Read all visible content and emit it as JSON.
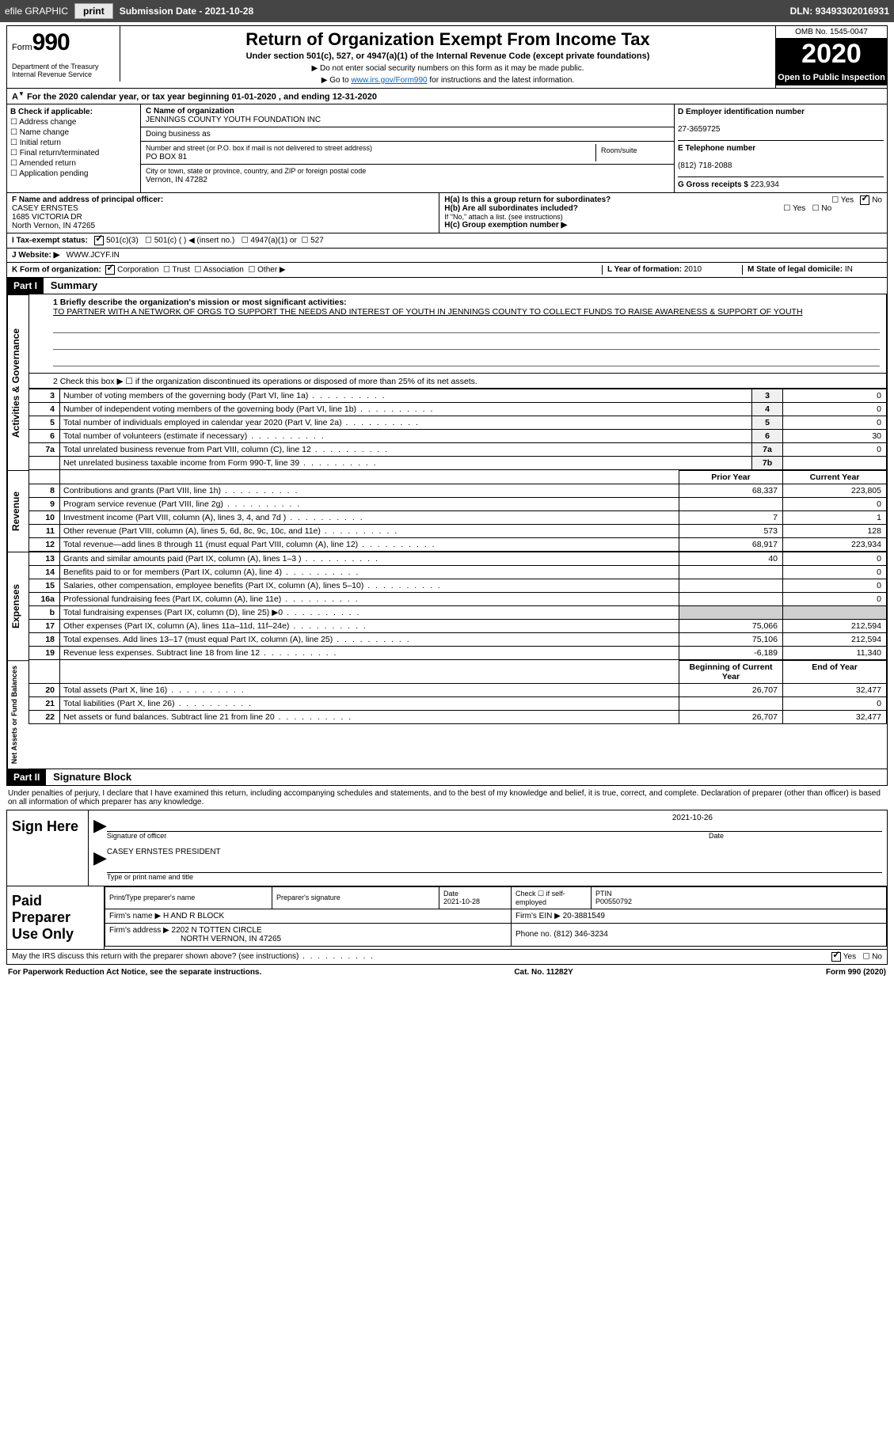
{
  "topbar": {
    "efile": "efile GRAPHIC",
    "print": "print",
    "subdate_label": "Submission Date - ",
    "subdate": "2021-10-28",
    "dln_label": "DLN: ",
    "dln": "93493302016931"
  },
  "header": {
    "form_word": "Form",
    "form_num": "990",
    "dept": "Department of the Treasury\nInternal Revenue Service",
    "title": "Return of Organization Exempt From Income Tax",
    "sub": "Under section 501(c), 527, or 4947(a)(1) of the Internal Revenue Code (except private foundations)",
    "note1": "▶ Do not enter social security numbers on this form as it may be made public.",
    "note2_pre": "▶ Go to ",
    "note2_link": "www.irs.gov/Form990",
    "note2_post": " for instructions and the latest information.",
    "omb": "OMB No. 1545-0047",
    "year": "2020",
    "openpub": "Open to Public Inspection"
  },
  "period": "For the 2020 calendar year, or tax year beginning 01-01-2020   , and ending 12-31-2020",
  "boxB": {
    "title": "B Check if applicable:",
    "opts": [
      "Address change",
      "Name change",
      "Initial return",
      "Final return/terminated",
      "Amended return",
      "Application pending"
    ]
  },
  "boxC": {
    "label": "C Name of organization",
    "name": "JENNINGS COUNTY YOUTH FOUNDATION INC",
    "dba_label": "Doing business as",
    "addr_label": "Number and street (or P.O. box if mail is not delivered to street address)",
    "room_label": "Room/suite",
    "addr": "PO BOX 81",
    "city_label": "City or town, state or province, country, and ZIP or foreign postal code",
    "city": "Vernon, IN  47282"
  },
  "boxD": {
    "label": "D Employer identification number",
    "val": "27-3659725"
  },
  "boxE": {
    "label": "E Telephone number",
    "val": "(812) 718-2088"
  },
  "boxG": {
    "label": "G Gross receipts $ ",
    "val": "223,934"
  },
  "boxF": {
    "label": "F Name and address of principal officer:",
    "name": "CASEY ERNSTES",
    "addr1": "1685 VICTORIA DR",
    "addr2": "North Vernon, IN  47265"
  },
  "boxH": {
    "a_label": "H(a)  Is this a group return for subordinates?",
    "b_label": "H(b)  Are all subordinates included?",
    "b_note": "If \"No,\" attach a list. (see instructions)",
    "c_label": "H(c)  Group exemption number ▶",
    "yes": "Yes",
    "no": "No"
  },
  "rowI": {
    "label": "I   Tax-exempt status:",
    "o1": "501(c)(3)",
    "o2": "501(c) (  ) ◀ (insert no.)",
    "o3": "4947(a)(1) or",
    "o4": "527"
  },
  "rowJ": {
    "label": "J   Website: ▶",
    "val": "WWW.JCYF.IN"
  },
  "rowK": {
    "label": "K Form of organization:",
    "o1": "Corporation",
    "o2": "Trust",
    "o3": "Association",
    "o4": "Other ▶"
  },
  "rowL": {
    "label": "L Year of formation: ",
    "val": "2010"
  },
  "rowM": {
    "label": "M State of legal domicile: ",
    "val": "IN"
  },
  "part1": {
    "tag": "Part I",
    "title": "Summary",
    "line1_label": "1   Briefly describe the organization's mission or most significant activities:",
    "line1_text": "TO PARTNER WITH A NETWORK OF ORGS TO SUPPORT THE NEEDS AND INTEREST OF YOUTH IN JENNINGS COUNTY TO COLLECT FUNDS TO RAISE AWARENESS & SUPPORT OF YOUTH",
    "line2": "2   Check this box ▶ ☐  if the organization discontinued its operations or disposed of more than 25% of its net assets.",
    "sideA": "Activities & Governance",
    "sideR": "Revenue",
    "sideE": "Expenses",
    "sideN": "Net Assets or Fund Balances",
    "prior": "Prior Year",
    "current": "Current Year",
    "begin": "Beginning of Current Year",
    "end": "End of Year",
    "rows_gov": [
      {
        "n": "3",
        "d": "Number of voting members of the governing body (Part VI, line 1a)",
        "b": "3",
        "v": "0"
      },
      {
        "n": "4",
        "d": "Number of independent voting members of the governing body (Part VI, line 1b)",
        "b": "4",
        "v": "0"
      },
      {
        "n": "5",
        "d": "Total number of individuals employed in calendar year 2020 (Part V, line 2a)",
        "b": "5",
        "v": "0"
      },
      {
        "n": "6",
        "d": "Total number of volunteers (estimate if necessary)",
        "b": "6",
        "v": "30"
      },
      {
        "n": "7a",
        "d": "Total unrelated business revenue from Part VIII, column (C), line 12",
        "b": "7a",
        "v": "0"
      },
      {
        "n": "",
        "d": "Net unrelated business taxable income from Form 990-T, line 39",
        "b": "7b",
        "v": ""
      }
    ],
    "rows_rev": [
      {
        "n": "8",
        "d": "Contributions and grants (Part VIII, line 1h)",
        "p": "68,337",
        "c": "223,805"
      },
      {
        "n": "9",
        "d": "Program service revenue (Part VIII, line 2g)",
        "p": "",
        "c": "0"
      },
      {
        "n": "10",
        "d": "Investment income (Part VIII, column (A), lines 3, 4, and 7d )",
        "p": "7",
        "c": "1"
      },
      {
        "n": "11",
        "d": "Other revenue (Part VIII, column (A), lines 5, 6d, 8c, 9c, 10c, and 11e)",
        "p": "573",
        "c": "128"
      },
      {
        "n": "12",
        "d": "Total revenue—add lines 8 through 11 (must equal Part VIII, column (A), line 12)",
        "p": "68,917",
        "c": "223,934"
      }
    ],
    "rows_exp": [
      {
        "n": "13",
        "d": "Grants and similar amounts paid (Part IX, column (A), lines 1–3 )",
        "p": "40",
        "c": "0"
      },
      {
        "n": "14",
        "d": "Benefits paid to or for members (Part IX, column (A), line 4)",
        "p": "",
        "c": "0"
      },
      {
        "n": "15",
        "d": "Salaries, other compensation, employee benefits (Part IX, column (A), lines 5–10)",
        "p": "",
        "c": "0"
      },
      {
        "n": "16a",
        "d": "Professional fundraising fees (Part IX, column (A), line 11e)",
        "p": "",
        "c": "0"
      },
      {
        "n": "b",
        "d": "Total fundraising expenses (Part IX, column (D), line 25) ▶0",
        "p": "GREY",
        "c": "GREY"
      },
      {
        "n": "17",
        "d": "Other expenses (Part IX, column (A), lines 11a–11d, 11f–24e)",
        "p": "75,066",
        "c": "212,594"
      },
      {
        "n": "18",
        "d": "Total expenses. Add lines 13–17 (must equal Part IX, column (A), line 25)",
        "p": "75,106",
        "c": "212,594"
      },
      {
        "n": "19",
        "d": "Revenue less expenses. Subtract line 18 from line 12",
        "p": "-6,189",
        "c": "11,340"
      }
    ],
    "rows_net": [
      {
        "n": "20",
        "d": "Total assets (Part X, line 16)",
        "p": "26,707",
        "c": "32,477"
      },
      {
        "n": "21",
        "d": "Total liabilities (Part X, line 26)",
        "p": "",
        "c": "0"
      },
      {
        "n": "22",
        "d": "Net assets or fund balances. Subtract line 21 from line 20",
        "p": "26,707",
        "c": "32,477"
      }
    ]
  },
  "part2": {
    "tag": "Part II",
    "title": "Signature Block",
    "declar": "Under penalties of perjury, I declare that I have examined this return, including accompanying schedules and statements, and to the best of my knowledge and belief, it is true, correct, and complete. Declaration of preparer (other than officer) is based on all information of which preparer has any knowledge.",
    "sign_here": "Sign Here",
    "sig_officer": "Signature of officer",
    "date": "Date",
    "sig_date": "2021-10-26",
    "name_title_label": "Type or print name and title",
    "name_title": "CASEY ERNSTES  PRESIDENT",
    "paid": "Paid Preparer Use Only",
    "prep_name_label": "Print/Type preparer's name",
    "prep_sig_label": "Preparer's signature",
    "prep_date_label": "Date",
    "prep_date": "2021-10-28",
    "check_se": "Check ☐ if self-employed",
    "ptin_label": "PTIN",
    "ptin": "P00550792",
    "firm_name_label": "Firm's name     ▶ ",
    "firm_name": "H AND R BLOCK",
    "firm_ein_label": "Firm's EIN ▶ ",
    "firm_ein": "20-3881549",
    "firm_addr_label": "Firm's address ▶ ",
    "firm_addr1": "2202 N TOTTEN CIRCLE",
    "firm_addr2": "NORTH VERNON, IN  47265",
    "phone_label": "Phone no. ",
    "phone": "(812) 346-3234",
    "discuss": "May the IRS discuss this return with the preparer shown above? (see instructions)",
    "yes": "Yes",
    "no": "No"
  },
  "footer": {
    "left": "For Paperwork Reduction Act Notice, see the separate instructions.",
    "mid": "Cat. No. 11282Y",
    "right": "Form 990 (2020)"
  }
}
